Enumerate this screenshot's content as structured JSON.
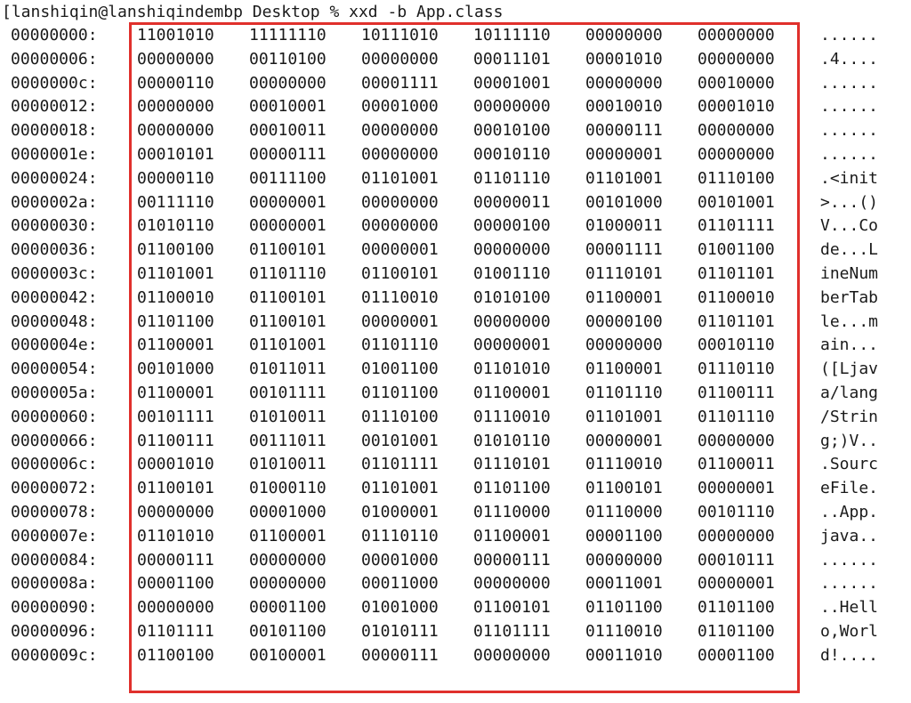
{
  "prompt": "[lanshiqin@lanshiqindembp Desktop % xxd -b App.class",
  "highlight_color": "#e0302c",
  "rows": [
    {
      "offset": "00000000:",
      "bytes": [
        "11001010",
        "11111110",
        "10111010",
        "10111110",
        "00000000",
        "00000000"
      ],
      "ascii": "......"
    },
    {
      "offset": "00000006:",
      "bytes": [
        "00000000",
        "00110100",
        "00000000",
        "00011101",
        "00001010",
        "00000000"
      ],
      "ascii": ".4...."
    },
    {
      "offset": "0000000c:",
      "bytes": [
        "00000110",
        "00000000",
        "00001111",
        "00001001",
        "00000000",
        "00010000"
      ],
      "ascii": "......"
    },
    {
      "offset": "00000012:",
      "bytes": [
        "00000000",
        "00010001",
        "00001000",
        "00000000",
        "00010010",
        "00001010"
      ],
      "ascii": "......"
    },
    {
      "offset": "00000018:",
      "bytes": [
        "00000000",
        "00010011",
        "00000000",
        "00010100",
        "00000111",
        "00000000"
      ],
      "ascii": "......"
    },
    {
      "offset": "0000001e:",
      "bytes": [
        "00010101",
        "00000111",
        "00000000",
        "00010110",
        "00000001",
        "00000000"
      ],
      "ascii": "......"
    },
    {
      "offset": "00000024:",
      "bytes": [
        "00000110",
        "00111100",
        "01101001",
        "01101110",
        "01101001",
        "01110100"
      ],
      "ascii": ".<init"
    },
    {
      "offset": "0000002a:",
      "bytes": [
        "00111110",
        "00000001",
        "00000000",
        "00000011",
        "00101000",
        "00101001"
      ],
      "ascii": ">...()"
    },
    {
      "offset": "00000030:",
      "bytes": [
        "01010110",
        "00000001",
        "00000000",
        "00000100",
        "01000011",
        "01101111"
      ],
      "ascii": "V...Co"
    },
    {
      "offset": "00000036:",
      "bytes": [
        "01100100",
        "01100101",
        "00000001",
        "00000000",
        "00001111",
        "01001100"
      ],
      "ascii": "de...L"
    },
    {
      "offset": "0000003c:",
      "bytes": [
        "01101001",
        "01101110",
        "01100101",
        "01001110",
        "01110101",
        "01101101"
      ],
      "ascii": "ineNum"
    },
    {
      "offset": "00000042:",
      "bytes": [
        "01100010",
        "01100101",
        "01110010",
        "01010100",
        "01100001",
        "01100010"
      ],
      "ascii": "berTab"
    },
    {
      "offset": "00000048:",
      "bytes": [
        "01101100",
        "01100101",
        "00000001",
        "00000000",
        "00000100",
        "01101101"
      ],
      "ascii": "le...m"
    },
    {
      "offset": "0000004e:",
      "bytes": [
        "01100001",
        "01101001",
        "01101110",
        "00000001",
        "00000000",
        "00010110"
      ],
      "ascii": "ain..."
    },
    {
      "offset": "00000054:",
      "bytes": [
        "00101000",
        "01011011",
        "01001100",
        "01101010",
        "01100001",
        "01110110"
      ],
      "ascii": "([Ljav"
    },
    {
      "offset": "0000005a:",
      "bytes": [
        "01100001",
        "00101111",
        "01101100",
        "01100001",
        "01101110",
        "01100111"
      ],
      "ascii": "a/lang"
    },
    {
      "offset": "00000060:",
      "bytes": [
        "00101111",
        "01010011",
        "01110100",
        "01110010",
        "01101001",
        "01101110"
      ],
      "ascii": "/Strin"
    },
    {
      "offset": "00000066:",
      "bytes": [
        "01100111",
        "00111011",
        "00101001",
        "01010110",
        "00000001",
        "00000000"
      ],
      "ascii": "g;)V.."
    },
    {
      "offset": "0000006c:",
      "bytes": [
        "00001010",
        "01010011",
        "01101111",
        "01110101",
        "01110010",
        "01100011"
      ],
      "ascii": ".Sourc"
    },
    {
      "offset": "00000072:",
      "bytes": [
        "01100101",
        "01000110",
        "01101001",
        "01101100",
        "01100101",
        "00000001"
      ],
      "ascii": "eFile."
    },
    {
      "offset": "00000078:",
      "bytes": [
        "00000000",
        "00001000",
        "01000001",
        "01110000",
        "01110000",
        "00101110"
      ],
      "ascii": "..App."
    },
    {
      "offset": "0000007e:",
      "bytes": [
        "01101010",
        "01100001",
        "01110110",
        "01100001",
        "00001100",
        "00000000"
      ],
      "ascii": "java.."
    },
    {
      "offset": "00000084:",
      "bytes": [
        "00000111",
        "00000000",
        "00001000",
        "00000111",
        "00000000",
        "00010111"
      ],
      "ascii": "......"
    },
    {
      "offset": "0000008a:",
      "bytes": [
        "00001100",
        "00000000",
        "00011000",
        "00000000",
        "00011001",
        "00000001"
      ],
      "ascii": "......"
    },
    {
      "offset": "00000090:",
      "bytes": [
        "00000000",
        "00001100",
        "01001000",
        "01100101",
        "01101100",
        "01101100"
      ],
      "ascii": "..Hell"
    },
    {
      "offset": "00000096:",
      "bytes": [
        "01101111",
        "00101100",
        "01010111",
        "01101111",
        "01110010",
        "01101100"
      ],
      "ascii": "o,Worl"
    },
    {
      "offset": "0000009c:",
      "bytes": [
        "01100100",
        "00100001",
        "00000111",
        "00000000",
        "00011010",
        "00001100"
      ],
      "ascii": "d!...."
    }
  ]
}
